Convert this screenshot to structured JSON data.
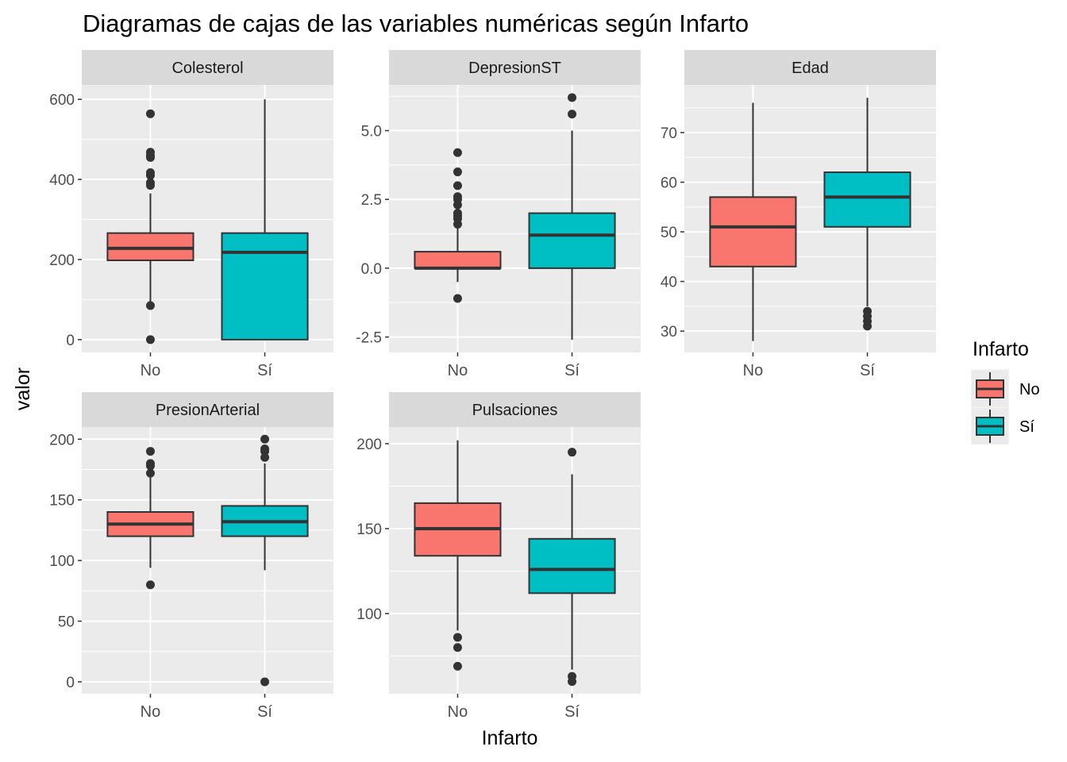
{
  "chart_data": {
    "type": "boxplot",
    "title": "Diagramas de cajas de las variables numéricas según Infarto",
    "xlabel": "Infarto",
    "ylabel": "valor",
    "categories": [
      "No",
      "Sí"
    ],
    "colors": {
      "No": "#F8766D",
      "Sí": "#00BFC4"
    },
    "legend": {
      "title": "Infarto",
      "entries": [
        "No",
        "Sí"
      ],
      "placement": "right"
    },
    "facets": [
      {
        "name": "Colesterol",
        "ylim": [
          -32,
          636
        ],
        "yticks": [
          0,
          200,
          400,
          600
        ],
        "ytick_labels": [
          "0",
          "200",
          "400",
          "600"
        ],
        "boxes": [
          {
            "group": "No",
            "lower": 85,
            "q1": 198,
            "median": 228,
            "q3": 266,
            "upper": 365,
            "outliers": [
              564,
              468,
              460,
              455,
              417,
              410,
              392,
              385,
              85,
              0
            ]
          },
          {
            "group": "Sí",
            "lower": 0,
            "q1": 0,
            "median": 218,
            "q3": 266,
            "upper": 600,
            "outliers": []
          }
        ]
      },
      {
        "name": "DepresionST",
        "ylim": [
          -3.06,
          6.66
        ],
        "yticks": [
          -2.5,
          0,
          2.5,
          5
        ],
        "ytick_labels": [
          "-2.5",
          "0.0",
          "2.5",
          "5.0"
        ],
        "boxes": [
          {
            "group": "No",
            "lower": -0.5,
            "q1": 0,
            "median": 0,
            "q3": 0.6,
            "upper": 1.5,
            "outliers": [
              4.2,
              3.5,
              3.0,
              2.6,
              2.5,
              2.3,
              2.0,
              1.9,
              1.8,
              1.6,
              -1.1
            ]
          },
          {
            "group": "Sí",
            "lower": -2.6,
            "q1": 0,
            "median": 1.2,
            "q3": 2.0,
            "upper": 5.0,
            "outliers": [
              6.2,
              5.6
            ]
          }
        ]
      },
      {
        "name": "Edad",
        "ylim": [
          25.7,
          79.6
        ],
        "yticks": [
          30,
          40,
          50,
          60,
          70
        ],
        "ytick_labels": [
          "30",
          "40",
          "50",
          "60",
          "70"
        ],
        "boxes": [
          {
            "group": "No",
            "lower": 28,
            "q1": 43,
            "median": 51,
            "q3": 57,
            "upper": 76,
            "outliers": []
          },
          {
            "group": "Sí",
            "lower": 35,
            "q1": 51,
            "median": 57,
            "q3": 62,
            "upper": 77,
            "outliers": [
              34,
              33,
              32,
              31
            ]
          }
        ]
      },
      {
        "name": "PresionArterial",
        "ylim": [
          -9.8,
          210
        ],
        "yticks": [
          0,
          50,
          100,
          150,
          200
        ],
        "ytick_labels": [
          "0",
          "50",
          "100",
          "150",
          "200"
        ],
        "boxes": [
          {
            "group": "No",
            "lower": 94,
            "q1": 120,
            "median": 130,
            "q3": 140,
            "upper": 170,
            "outliers": [
              190,
              180,
              178,
              172,
              80
            ]
          },
          {
            "group": "Sí",
            "lower": 92,
            "q1": 120,
            "median": 132,
            "q3": 145,
            "upper": 180,
            "outliers": [
              200,
              192,
              190,
              185,
              0
            ]
          }
        ]
      },
      {
        "name": "Pulsaciones",
        "ylim": [
          52.8,
          209.8
        ],
        "yticks": [
          100,
          150,
          200
        ],
        "ytick_labels": [
          "100",
          "150",
          "200"
        ],
        "boxes": [
          {
            "group": "No",
            "lower": 90,
            "q1": 134,
            "median": 150,
            "q3": 165,
            "upper": 202,
            "outliers": [
              86,
              80,
              69
            ]
          },
          {
            "group": "Sí",
            "lower": 67,
            "q1": 112,
            "median": 126,
            "q3": 144,
            "upper": 182,
            "outliers": [
              195,
              63,
              60
            ]
          }
        ]
      }
    ]
  }
}
